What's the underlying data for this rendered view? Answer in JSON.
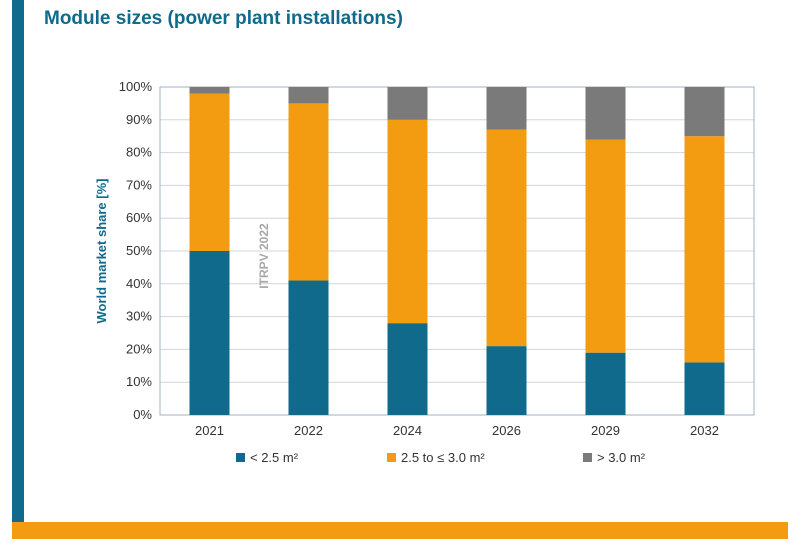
{
  "title": "Module sizes (power plant installations)",
  "colors": {
    "frame": "#0f6a8b",
    "accent": "#f39c12",
    "series": [
      "#0f6a8b",
      "#f39c12",
      "#7a7a7a"
    ]
  },
  "chart_data": {
    "type": "bar",
    "stacked": true,
    "title": "Module sizes (power plant installations)",
    "xlabel": "",
    "ylabel": "World market share [%]",
    "ylim": [
      0,
      100
    ],
    "yticks": [
      0,
      10,
      20,
      30,
      40,
      50,
      60,
      70,
      80,
      90,
      100
    ],
    "ytick_labels": [
      "0%",
      "10%",
      "20%",
      "30%",
      "40%",
      "50%",
      "60%",
      "70%",
      "80%",
      "90%",
      "100%"
    ],
    "categories": [
      "2021",
      "2022",
      "2024",
      "2026",
      "2029",
      "2032"
    ],
    "series": [
      {
        "name": "< 2.5 m²",
        "values": [
          50,
          41,
          28,
          21,
          19,
          16
        ]
      },
      {
        "name": "2.5 to ≤ 3.0 m²",
        "values": [
          48,
          54,
          62,
          66,
          65,
          69
        ]
      },
      {
        "name": "> 3.0 m²",
        "values": [
          2,
          5,
          10,
          13,
          16,
          15
        ]
      }
    ],
    "grid": true,
    "legend_position": "bottom",
    "annotation": "ITRPV 2022"
  }
}
